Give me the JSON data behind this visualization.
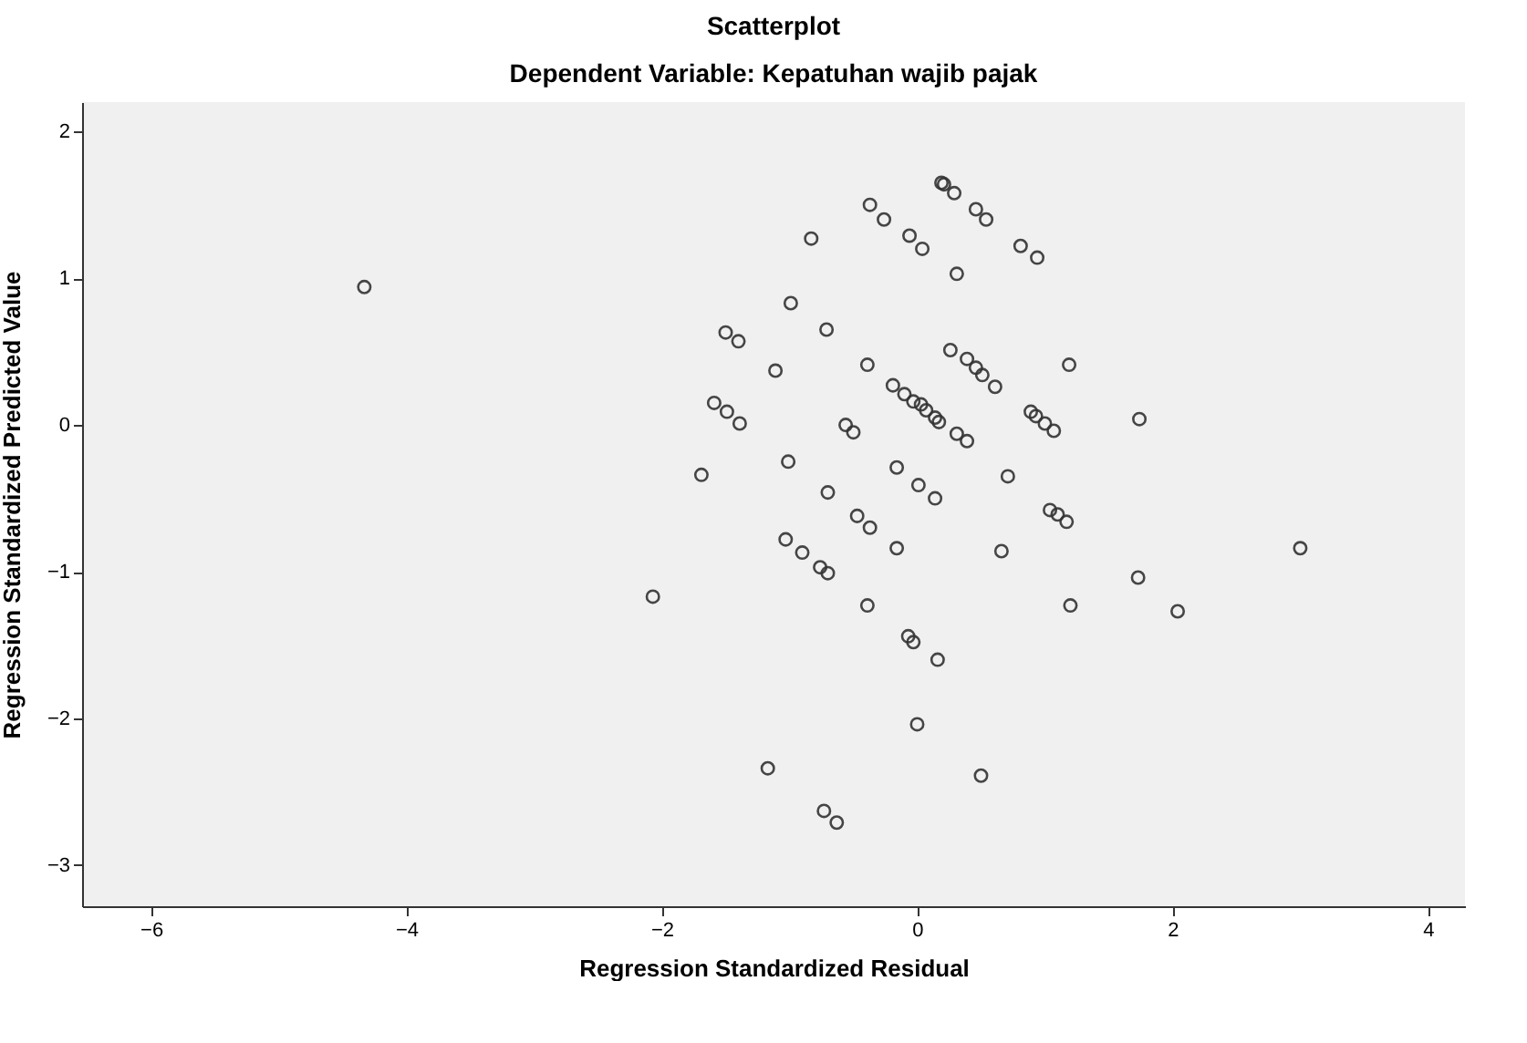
{
  "chart_data": {
    "type": "scatter",
    "title": "Scatterplot",
    "subtitle": "Dependent Variable: Kepatuhan wajib pajak",
    "xlabel": "Regression Standardized Residual",
    "ylabel": "Regression Standardized Predicted Value",
    "xlim": [
      -6.54,
      4.29
    ],
    "ylim": [
      -3.28,
      2.2
    ],
    "xticks": [
      -6,
      -4,
      -2,
      0,
      2,
      4
    ],
    "yticks": [
      -3,
      -2,
      -1,
      0,
      1,
      2
    ],
    "grid": false,
    "marker": "circle",
    "series": [
      {
        "color": "#333333",
        "x": [
          -4.33,
          -0.83,
          -0.37,
          -0.26,
          -0.06,
          0.04,
          0.19,
          0.21,
          0.29,
          0.46,
          0.54,
          0.31,
          0.81,
          0.94,
          -0.99,
          -1.5,
          -1.4,
          -0.71,
          -1.11,
          -0.39,
          0.26,
          0.39,
          0.46,
          0.51,
          0.61,
          1.19,
          -1.59,
          -1.49,
          -1.39,
          -0.19,
          -0.1,
          -0.03,
          0.03,
          0.07,
          0.14,
          0.17,
          0.31,
          0.39,
          0.89,
          0.93,
          1.0,
          1.07,
          1.74,
          -0.56,
          -0.5,
          -1.69,
          -1.01,
          -0.16,
          0.71,
          -0.7,
          0.01,
          0.14,
          1.04,
          1.1,
          1.17,
          -0.47,
          -0.37,
          -1.03,
          -0.9,
          -0.76,
          -0.7,
          -0.16,
          0.66,
          -2.07,
          -0.39,
          -0.07,
          -0.03,
          0.16,
          1.2,
          1.73,
          2.04,
          3.0,
          0.0,
          -1.17,
          0.5,
          -0.73,
          -0.63
        ],
        "values": [
          0.94,
          1.27,
          1.5,
          1.4,
          1.29,
          1.2,
          1.65,
          1.64,
          1.58,
          1.47,
          1.4,
          1.03,
          1.22,
          1.14,
          0.83,
          0.63,
          0.57,
          0.65,
          0.37,
          0.41,
          0.51,
          0.45,
          0.39,
          0.34,
          0.26,
          0.41,
          0.15,
          0.09,
          0.01,
          0.27,
          0.21,
          0.16,
          0.14,
          0.1,
          0.05,
          0.02,
          -0.06,
          -0.11,
          0.09,
          0.06,
          0.01,
          -0.04,
          0.04,
          0.0,
          -0.05,
          -0.34,
          -0.25,
          -0.29,
          -0.35,
          -0.46,
          -0.41,
          -0.5,
          -0.58,
          -0.61,
          -0.66,
          -0.62,
          -0.7,
          -0.78,
          -0.87,
          -0.97,
          -1.01,
          -0.84,
          -0.86,
          -1.17,
          -1.23,
          -1.44,
          -1.48,
          -1.6,
          -1.23,
          -1.04,
          -1.27,
          -0.84,
          -2.04,
          -2.34,
          -2.39,
          -2.63,
          -2.71
        ]
      }
    ]
  }
}
